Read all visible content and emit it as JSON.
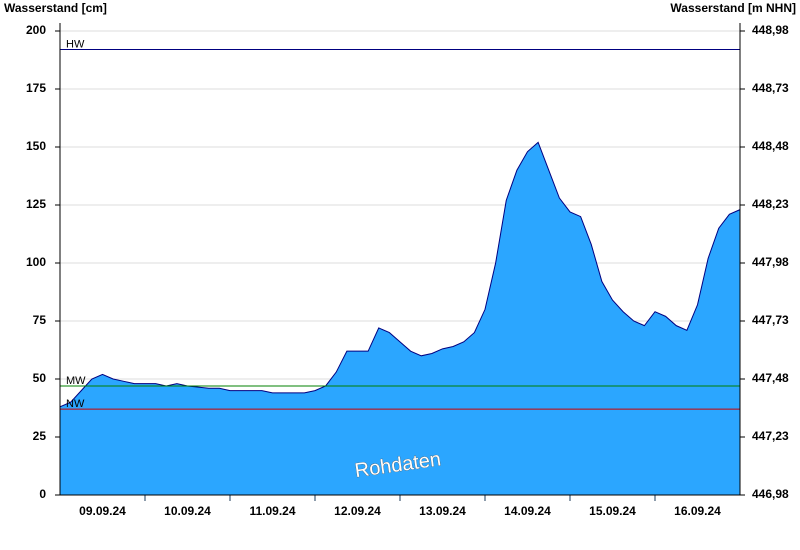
{
  "chart_data": {
    "type": "area",
    "y_label": "Wasserstand [cm]",
    "y2_label": "Wasserstand [m NHN]",
    "watermark": "Rohdaten",
    "x": [
      0,
      0.125,
      0.25,
      0.375,
      0.5,
      0.625,
      0.75,
      0.875,
      1,
      1.125,
      1.25,
      1.375,
      1.5,
      1.625,
      1.75,
      1.875,
      2,
      2.125,
      2.25,
      2.375,
      2.5,
      2.625,
      2.75,
      2.875,
      3,
      3.125,
      3.25,
      3.375,
      3.5,
      3.625,
      3.75,
      3.875,
      4,
      4.125,
      4.25,
      4.375,
      4.5,
      4.625,
      4.75,
      4.875,
      5,
      5.125,
      5.25,
      5.375,
      5.5,
      5.625,
      5.75,
      5.875,
      6,
      6.125,
      6.25,
      6.375,
      6.5,
      6.625,
      6.75,
      6.875,
      7,
      7.125,
      7.25,
      7.375,
      7.5,
      7.625,
      7.75,
      7.875,
      8
    ],
    "series": [
      {
        "name": "Wasserstand",
        "color": "#2ba6ff",
        "line_color": "#000080",
        "values": [
          38,
          40,
          45,
          50,
          52,
          50,
          49,
          48,
          48,
          48,
          47,
          48,
          47,
          46.5,
          46,
          46,
          45,
          45,
          45,
          45,
          44,
          44,
          44,
          44,
          45,
          47,
          53,
          62,
          62,
          62,
          72,
          70,
          66,
          62,
          60,
          61,
          63,
          64,
          66,
          70,
          80,
          100,
          127,
          140,
          148,
          152,
          140,
          128,
          122,
          120,
          108,
          92,
          84,
          79,
          75,
          73,
          79,
          77,
          73,
          71,
          82,
          102,
          115,
          121,
          123
        ]
      }
    ],
    "reference_lines": [
      {
        "label": "HW",
        "value": 192,
        "color": "#000080"
      },
      {
        "label": "MW",
        "value": 47,
        "color": "#008000"
      },
      {
        "label": "NW",
        "value": 37,
        "color": "#cc0000"
      }
    ],
    "xlim": [
      0,
      8
    ],
    "xticks": [
      {
        "value": 0.5,
        "label": "09.09.24"
      },
      {
        "value": 1.5,
        "label": "10.09.24"
      },
      {
        "value": 2.5,
        "label": "11.09.24"
      },
      {
        "value": 3.5,
        "label": "12.09.24"
      },
      {
        "value": 4.5,
        "label": "13.09.24"
      },
      {
        "value": 5.5,
        "label": "14.09.24"
      },
      {
        "value": 6.5,
        "label": "15.09.24"
      },
      {
        "value": 7.5,
        "label": "16.09.24"
      }
    ],
    "ylim": [
      0,
      200
    ],
    "yticks": [
      0,
      25,
      50,
      75,
      100,
      125,
      150,
      175,
      200
    ],
    "y2lim": [
      446.98,
      448.98
    ],
    "y2ticks": [
      {
        "value": 446.98,
        "label": "446,98"
      },
      {
        "value": 447.23,
        "label": "447,23"
      },
      {
        "value": 447.48,
        "label": "447,48"
      },
      {
        "value": 447.73,
        "label": "447,73"
      },
      {
        "value": 447.98,
        "label": "447,98"
      },
      {
        "value": 448.23,
        "label": "448,23"
      },
      {
        "value": 448.48,
        "label": "448,48"
      },
      {
        "value": 448.73,
        "label": "448,73"
      },
      {
        "value": 448.98,
        "label": "448,98"
      }
    ],
    "grid": true
  }
}
